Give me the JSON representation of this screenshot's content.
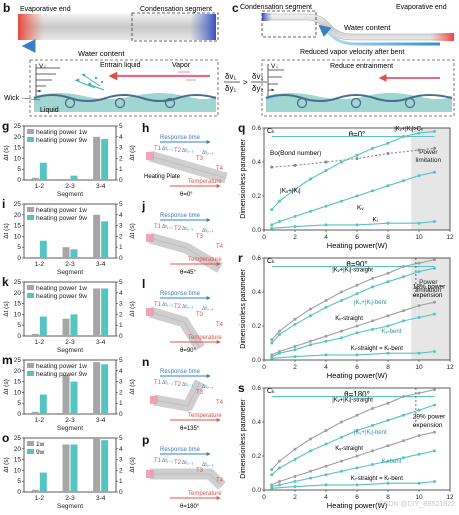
{
  "top": {
    "b": {
      "panel": "b",
      "evaporative_end": "Evaporative end",
      "condensation_segment": "Condensation segment",
      "water_content": "Water content",
      "v_label": "V↓",
      "entrain_liquid": "Entrain liquid",
      "vapor": "Vapor",
      "wick": "Wick",
      "liquid": "Liquid",
      "ratio_left": "δv₁",
      "ratio_left_den": "δy₁",
      "compare": ">",
      "ratio_right": "δv₂",
      "ratio_right_den": "δy₂"
    },
    "c": {
      "panel": "c",
      "condensation_segment": "Condensation segment",
      "evaporative_end": "Evaporative end",
      "water_content": "Water content",
      "reduced_vapor": "Reduced vapor velocity after bent",
      "reduce_entrainment": "Reduce entrainment",
      "v_label": "V↓"
    }
  },
  "bar_panels": [
    {
      "panel": "g",
      "legend": [
        "heating power 1w",
        "heating power 9w"
      ],
      "xlabel": "Segment",
      "ylabel": "Δt (s)"
    },
    {
      "panel": "i",
      "legend": [
        "heating power 1w",
        "heating power 9w"
      ],
      "xlabel": "Segment",
      "ylabel": "Δt (s)"
    },
    {
      "panel": "k",
      "legend": [
        "heating power 1w",
        "heating power 9w"
      ],
      "xlabel": "Segment",
      "ylabel": "Δt (s)"
    },
    {
      "panel": "m",
      "legend": [
        "heating power 1w",
        "heating power 9w"
      ],
      "xlabel": "Segment",
      "ylabel": "Δt (s)"
    },
    {
      "panel": "o",
      "legend": [
        "1w",
        "9w"
      ],
      "xlabel": "Segment",
      "ylabel": "Δt (s)"
    }
  ],
  "pipe_panels": [
    {
      "panel": "h",
      "angle": "θ=0°",
      "labels": [
        "T1",
        "T2",
        "T3",
        "T4"
      ],
      "deltas": [
        "Δt₁₋₂",
        "Δt₂₋₃",
        "Δt₃₋₄"
      ],
      "response": "Response time",
      "temperature": "Temperature",
      "heating": "Heating Plate"
    },
    {
      "panel": "j",
      "angle": "θ=45°",
      "labels": [
        "T1",
        "T2",
        "T3",
        "T4"
      ],
      "deltas": [
        "Δt₁₋₂",
        "Δt₂₋₃",
        "Δt₃₋₄"
      ],
      "response": "Response time",
      "temperature": "Temperature"
    },
    {
      "panel": "l",
      "angle": "θ=90°",
      "labels": [
        "T1",
        "T2",
        "T3",
        "T4"
      ],
      "deltas": [
        "Δt₁₋₂",
        "Δt₂₋₃",
        "Δt₃₋₄"
      ],
      "response": "Response time",
      "temperature": "Temperature"
    },
    {
      "panel": "n",
      "angle": "θ=135°",
      "labels": [
        "T1",
        "T2",
        "T3",
        "T4"
      ],
      "deltas": [
        "Δt₁₋₂",
        "Δt₂₋₃",
        "Δt₃₋₄"
      ],
      "response": "Response time",
      "temperature": "Temperature"
    },
    {
      "panel": "p",
      "angle": "θ=180°",
      "labels": [
        "T1",
        "T2",
        "T3",
        "T4"
      ],
      "deltas": [
        "Δt₁₋₂",
        "Δt₂₋₃",
        "Δt₃₋₄"
      ],
      "response": "Response time",
      "temperature": "Temperature"
    }
  ],
  "line_panels": [
    {
      "panel": "q",
      "title": "θ=0°",
      "xlabel": "Heating power(W)",
      "ylabel": "Dimensionless parameter",
      "labels": {
        "ck": "Cₖ",
        "bo": "Bo(Bond number)",
        "kvki": "|Kᵥ+|Kᵢ|",
        "kv": "Kᵥ",
        "ki": "Kᵢ",
        "cmp": "|Kᵥ+|Kᵢ|>Cₖ",
        "limit1": "Power",
        "limit2": "limitation"
      }
    },
    {
      "panel": "r",
      "title": "θ=90°",
      "xlabel": "Heating power(W)",
      "ylabel": "Dimensionless parameter",
      "labels": {
        "ck": "Cₖ",
        "a": "|Kᵥ+|Kᵢ|-straight",
        "b": "|Kᵥ+|Kᵢ|-bent",
        "c": "Kᵥ-straight",
        "d": "Kᵥ-bent",
        "e": "Kᵢ-straight = Kᵢ-bent",
        "note1": "18% power",
        "note2": "expension",
        "limit1": "Power",
        "limit2": "limitation"
      }
    },
    {
      "panel": "s",
      "title": "θ=180°",
      "xlabel": "Heating power(W)",
      "ylabel": "Dimensionless parameter",
      "labels": {
        "ck": "Cₖ",
        "a": "|Kᵥ+|Kᵢ|-straight",
        "b": "|Kᵥ+|Kᵢ|-bent",
        "c": "Kᵥ-straight",
        "d": "Kᵥ-bent",
        "e": "Kᵢ-straight = Kᵢ-bent",
        "note1": "29% power",
        "note2": "expension"
      }
    }
  ],
  "chart_data": [
    {
      "type": "bar",
      "panel": "g",
      "categories": [
        "1-2",
        "2-3",
        "3-4"
      ],
      "series": [
        {
          "name": "heating power 1w",
          "values": [
            1,
            0.5,
            20
          ]
        },
        {
          "name": "heating power 9w",
          "values": [
            8,
            2,
            19
          ]
        }
      ],
      "ylim": [
        0,
        25
      ],
      "y_ticks": [
        0,
        5,
        10,
        15,
        20,
        25
      ],
      "y2_ticks": [
        0,
        1,
        2,
        3,
        4,
        5
      ]
    },
    {
      "type": "bar",
      "panel": "i",
      "categories": [
        "1-2",
        "2-3",
        "3-4"
      ],
      "series": [
        {
          "name": "heating power 1w",
          "values": [
            0.5,
            5,
            20
          ]
        },
        {
          "name": "heating power 9w",
          "values": [
            8,
            4,
            17
          ]
        }
      ],
      "ylim": [
        0,
        25
      ],
      "y_ticks": [
        0,
        5,
        10,
        15,
        20,
        25
      ],
      "y2_ticks": [
        0,
        1,
        2,
        3,
        4,
        5
      ]
    },
    {
      "type": "bar",
      "panel": "k",
      "categories": [
        "1-2",
        "2-3",
        "3-4"
      ],
      "series": [
        {
          "name": "heating power 1w",
          "values": [
            1,
            8,
            22
          ]
        },
        {
          "name": "heating power 9w",
          "values": [
            9,
            10,
            22
          ]
        }
      ],
      "ylim": [
        0,
        25
      ],
      "y_ticks": [
        0,
        5,
        10,
        15,
        20,
        25
      ],
      "y2_ticks": [
        0,
        1,
        2,
        3,
        4,
        5
      ]
    },
    {
      "type": "bar",
      "panel": "m",
      "categories": [
        "1-2",
        "2-3",
        "3-4"
      ],
      "series": [
        {
          "name": "heating power 1w",
          "values": [
            1,
            18,
            24
          ]
        },
        {
          "name": "heating power 9w",
          "values": [
            9,
            15,
            23
          ]
        }
      ],
      "ylim": [
        0,
        25
      ],
      "y_ticks": [
        0,
        5,
        10,
        15,
        20,
        25
      ],
      "y2_ticks": [
        0,
        1,
        2,
        3,
        4,
        5
      ]
    },
    {
      "type": "bar",
      "panel": "o",
      "categories": [
        "1-2",
        "2-3",
        "3-4"
      ],
      "series": [
        {
          "name": "1w",
          "values": [
            1,
            22,
            25
          ]
        },
        {
          "name": "9w",
          "values": [
            9,
            22,
            24
          ]
        }
      ],
      "ylim": [
        0,
        25
      ],
      "y_ticks": [
        0,
        5,
        10,
        15,
        20,
        25
      ],
      "y2_ticks": [
        0,
        1,
        2,
        3,
        4,
        5
      ]
    },
    {
      "type": "line",
      "panel": "q",
      "xlim": [
        0,
        12
      ],
      "ylim": [
        0,
        0.6
      ],
      "x_ticks": [
        0,
        2,
        4,
        6,
        8,
        10,
        12
      ],
      "y_ticks": [
        0,
        0.2,
        0.4,
        0.6
      ],
      "series": [
        {
          "name": "Ck",
          "x": [
            0.5,
            2,
            4,
            6,
            8,
            10,
            11
          ],
          "y": [
            0.55,
            0.55,
            0.55,
            0.55,
            0.55,
            0.55,
            0.55
          ]
        },
        {
          "name": "Bo",
          "x": [
            0.5,
            2,
            4,
            6,
            8,
            10,
            11
          ],
          "y": [
            0.37,
            0.38,
            0.4,
            0.42,
            0.45,
            0.47,
            0.48
          ]
        },
        {
          "name": "|Kv+|Ki|",
          "x": [
            0.5,
            1,
            2,
            3,
            4,
            5,
            6,
            7,
            8,
            9,
            10,
            11
          ],
          "y": [
            0.12,
            0.17,
            0.24,
            0.3,
            0.35,
            0.4,
            0.44,
            0.48,
            0.51,
            0.55,
            0.57,
            0.58
          ]
        },
        {
          "name": "Kv",
          "x": [
            0.5,
            1,
            2,
            3,
            4,
            5,
            6,
            7,
            8,
            9,
            10,
            11
          ],
          "y": [
            0.03,
            0.05,
            0.08,
            0.11,
            0.14,
            0.17,
            0.2,
            0.23,
            0.26,
            0.29,
            0.32,
            0.34
          ]
        },
        {
          "name": "Ki",
          "x": [
            0.5,
            2,
            4,
            6,
            8,
            10,
            11
          ],
          "y": [
            0.01,
            0.02,
            0.03,
            0.03,
            0.04,
            0.04,
            0.05
          ]
        }
      ]
    },
    {
      "type": "line",
      "panel": "r",
      "xlim": [
        0,
        12
      ],
      "ylim": [
        0,
        0.6
      ],
      "x_ticks": [
        0,
        2,
        4,
        6,
        8,
        10,
        12
      ],
      "y_ticks": [
        0,
        0.2,
        0.4,
        0.6
      ],
      "series": [
        {
          "name": "Ck",
          "x": [
            0.5,
            11
          ],
          "y": [
            0.55,
            0.55
          ]
        },
        {
          "name": "|Kv+|Ki|-straight",
          "x": [
            0.5,
            1,
            2,
            3,
            4,
            5,
            6,
            7,
            8,
            9,
            10,
            11
          ],
          "y": [
            0.12,
            0.17,
            0.24,
            0.3,
            0.35,
            0.4,
            0.44,
            0.48,
            0.51,
            0.55,
            0.57,
            0.59
          ]
        },
        {
          "name": "|Kv+|Ki|-bent",
          "x": [
            0.5,
            1,
            2,
            3,
            4,
            5,
            6,
            7,
            8,
            9,
            10,
            11
          ],
          "y": [
            0.1,
            0.15,
            0.21,
            0.26,
            0.31,
            0.35,
            0.39,
            0.43,
            0.46,
            0.49,
            0.52,
            0.54
          ]
        },
        {
          "name": "Kv-straight",
          "x": [
            0.5,
            1,
            2,
            3,
            4,
            5,
            6,
            7,
            8,
            9,
            10,
            11
          ],
          "y": [
            0.03,
            0.05,
            0.08,
            0.11,
            0.14,
            0.17,
            0.2,
            0.23,
            0.26,
            0.29,
            0.32,
            0.34
          ]
        },
        {
          "name": "Kv-bent",
          "x": [
            0.5,
            1,
            2,
            3,
            4,
            5,
            6,
            7,
            8,
            9,
            10,
            11
          ],
          "y": [
            0.02,
            0.04,
            0.06,
            0.09,
            0.11,
            0.13,
            0.16,
            0.18,
            0.2,
            0.23,
            0.25,
            0.27
          ]
        },
        {
          "name": "Ki-straight = Ki-bent",
          "x": [
            0.5,
            2,
            4,
            6,
            8,
            10,
            11
          ],
          "y": [
            0.01,
            0.02,
            0.03,
            0.03,
            0.04,
            0.04,
            0.05
          ]
        }
      ]
    },
    {
      "type": "line",
      "panel": "s",
      "xlim": [
        0,
        12
      ],
      "ylim": [
        0,
        0.6
      ],
      "x_ticks": [
        0,
        2,
        4,
        6,
        8,
        10,
        12
      ],
      "y_ticks": [
        0,
        0.2,
        0.4,
        0.6
      ],
      "series": [
        {
          "name": "Ck",
          "x": [
            0.5,
            11
          ],
          "y": [
            0.55,
            0.55
          ]
        },
        {
          "name": "|Kv+|Ki|-straight",
          "x": [
            0.5,
            1,
            2,
            3,
            4,
            5,
            6,
            7,
            8,
            9,
            10,
            11
          ],
          "y": [
            0.12,
            0.17,
            0.24,
            0.3,
            0.35,
            0.4,
            0.44,
            0.48,
            0.51,
            0.55,
            0.57,
            0.59
          ]
        },
        {
          "name": "|Kv+|Ki|-bent",
          "x": [
            0.5,
            1,
            2,
            3,
            4,
            5,
            6,
            7,
            8,
            9,
            10,
            11
          ],
          "y": [
            0.09,
            0.13,
            0.18,
            0.23,
            0.27,
            0.31,
            0.35,
            0.38,
            0.41,
            0.44,
            0.47,
            0.5
          ]
        },
        {
          "name": "Kv-straight",
          "x": [
            0.5,
            1,
            2,
            3,
            4,
            5,
            6,
            7,
            8,
            9,
            10,
            11
          ],
          "y": [
            0.03,
            0.05,
            0.08,
            0.11,
            0.14,
            0.17,
            0.2,
            0.23,
            0.26,
            0.29,
            0.32,
            0.34
          ]
        },
        {
          "name": "Kv-bent",
          "x": [
            0.5,
            1,
            2,
            3,
            4,
            5,
            6,
            7,
            8,
            9,
            10,
            11
          ],
          "y": [
            0.02,
            0.03,
            0.05,
            0.07,
            0.09,
            0.11,
            0.13,
            0.15,
            0.17,
            0.19,
            0.21,
            0.23
          ]
        },
        {
          "name": "Ki-straight = Ki-bent",
          "x": [
            0.5,
            2,
            4,
            6,
            8,
            10,
            11
          ],
          "y": [
            0.01,
            0.02,
            0.03,
            0.03,
            0.04,
            0.04,
            0.05
          ]
        }
      ]
    }
  ],
  "watermark": "CSDN @DIY_B8521822",
  "colors": {
    "gray": "#a6a6a6",
    "teal": "#56c4c0",
    "blue": "#3a7fc1",
    "red": "#d9534f",
    "pink": "#f09cb0",
    "shade": "#e6e6e6",
    "dark": "#555555"
  }
}
